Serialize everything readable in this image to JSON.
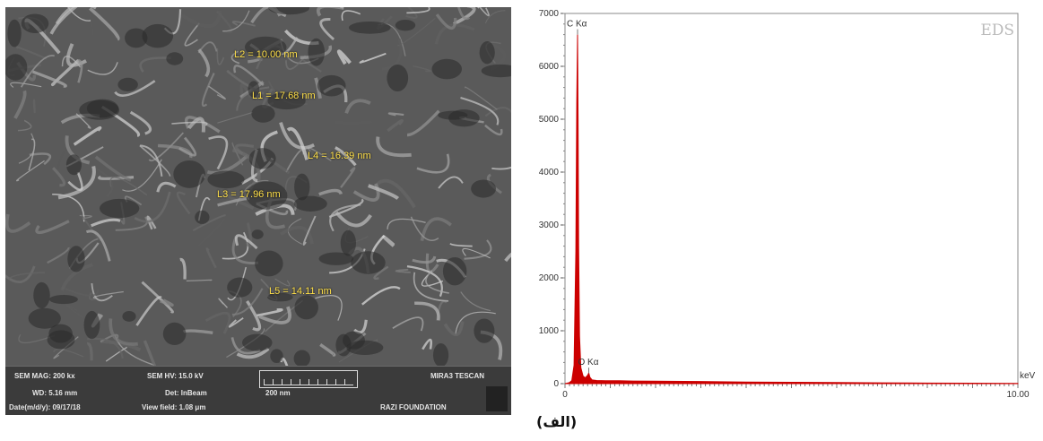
{
  "sem": {
    "measurements": [
      "L2 = 10.00 nm",
      "L1 = 17.68 nm",
      "L4 = 16.39 nm",
      "L3 = 17.96 nm",
      "L5 = 14.11 nm"
    ],
    "info": {
      "mag": "SEM MAG: 200 kx",
      "hv": "SEM HV: 15.0 kV",
      "wd": "WD: 5.16 mm",
      "det": "Det: InBeam",
      "date": "Date(m/d/y): 09/17/18",
      "view_field": "View field: 1.08 μm",
      "scale": "200 nm",
      "instrument": "MIRA3 TESCAN",
      "foundation": "RAZI FOUNDATION"
    }
  },
  "caption": "(الف)",
  "chart_data": {
    "type": "line",
    "label": "EDS",
    "xlabel": "keV",
    "xlim": [
      0,
      10
    ],
    "ylim": [
      0,
      7000
    ],
    "x_ticks": [
      "0",
      "10.00"
    ],
    "y_ticks": [
      "0",
      "1000",
      "2000",
      "3000",
      "4000",
      "5000",
      "6000",
      "7000"
    ],
    "peaks": [
      {
        "label": "C Kα",
        "x": 0.277,
        "y": 6600
      },
      {
        "label": "O Kα",
        "x": 0.525,
        "y": 200
      }
    ],
    "series": [
      {
        "color": "#cc0000",
        "x": [
          0.0,
          0.1,
          0.15,
          0.2,
          0.24,
          0.26,
          0.277,
          0.29,
          0.3,
          0.32,
          0.35,
          0.4,
          0.45,
          0.5,
          0.525,
          0.55,
          0.6,
          0.7,
          0.9,
          1.2,
          1.5,
          2.0,
          3.0,
          4.0,
          5.0,
          6.0,
          7.0,
          8.0,
          9.0,
          10.0
        ],
        "y": [
          0,
          20,
          60,
          350,
          2500,
          5300,
          6600,
          5000,
          2600,
          900,
          300,
          140,
          110,
          160,
          200,
          120,
          70,
          60,
          55,
          55,
          50,
          45,
          40,
          30,
          25,
          20,
          15,
          10,
          8,
          5
        ]
      }
    ]
  }
}
